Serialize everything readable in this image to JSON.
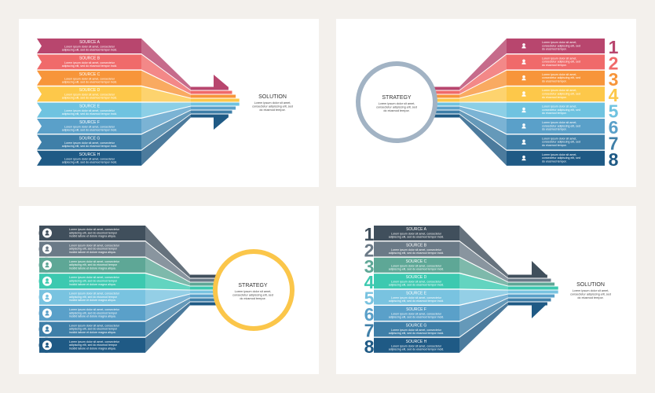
{
  "background": "#f3f0ec",
  "panels": [
    {
      "id": "sources-to-solution-colorful",
      "colors": [
        "#b8466e",
        "#f06a6a",
        "#f7953a",
        "#fdc84a",
        "#6fc3e0",
        "#5aa0c9",
        "#3f7fa8",
        "#1f5a85"
      ],
      "rows": [
        {
          "title": "SOURCE A"
        },
        {
          "title": "SOURCE B"
        },
        {
          "title": "SOURCE C"
        },
        {
          "title": "SOURCE D"
        },
        {
          "title": "SOURCE E"
        },
        {
          "title": "SOURCE F"
        },
        {
          "title": "SOURCE G"
        },
        {
          "title": "SOURCE H"
        }
      ],
      "row_desc": [
        "Lorem ipsum dolor sit amet, consectetur",
        "adipiscing elit, sed do eiusmod tempor incid."
      ],
      "target_title": "SOLUTION",
      "target_desc": [
        "Lorem ipsum dolor sit amet,",
        "consectetur adipiscing elit, sed",
        "do eiusmod tempor."
      ]
    },
    {
      "id": "strategy-to-numbered-colorful",
      "colors": [
        "#b8466e",
        "#f06a6a",
        "#f7953a",
        "#fdc84a",
        "#6fc3e0",
        "#5aa0c9",
        "#3f7fa8",
        "#1f5a85"
      ],
      "circle_color": "#a2b3c4",
      "numbers": [
        "1",
        "2",
        "3",
        "4",
        "5",
        "6",
        "7",
        "8"
      ],
      "icon": "person-icon",
      "row_desc": [
        "Lorem ipsum dolor sit amet,",
        "consectetur adipiscing elit, sed",
        "do eiusmod tempor."
      ],
      "target_title": "STRATEGY",
      "target_desc": [
        "Lorem ipsum dolor sit amet,",
        "consectetur adipiscing elit, sed",
        "do eiusmod tempor."
      ]
    },
    {
      "id": "icons-to-strategy-cool",
      "colors": [
        "#404f5c",
        "#6b7a87",
        "#5ea796",
        "#3cc9b0",
        "#79c3e0",
        "#5aa0c9",
        "#3f7fa8",
        "#1f5a85"
      ],
      "circle_color": "#fbc64a",
      "icon": "person-icon",
      "row_desc": [
        "Lorem ipsum dolor sit amet, consectetur",
        "adipiscing elit, sed do eiusmod tempor",
        "incidid labore et dolore magna aliqua."
      ],
      "target_title": "STRATEGY",
      "target_desc": [
        "Lorem ipsum dolor sit amet,",
        "consectetur adipiscing elit, sed",
        "do eiusmod tempor."
      ]
    },
    {
      "id": "numbered-sources-to-solution-cool",
      "colors": [
        "#404f5c",
        "#6b7a87",
        "#5ea796",
        "#3cc9b0",
        "#79c3e0",
        "#5aa0c9",
        "#3f7fa8",
        "#1f5a85"
      ],
      "numbers": [
        "1",
        "2",
        "3",
        "4",
        "5",
        "6",
        "7",
        "8"
      ],
      "rows": [
        {
          "title": "SOURCE A"
        },
        {
          "title": "SOURCE B"
        },
        {
          "title": "SOURCE C"
        },
        {
          "title": "SOURCE D"
        },
        {
          "title": "SOURCE E"
        },
        {
          "title": "SOURCE F"
        },
        {
          "title": "SOURCE G"
        },
        {
          "title": "SOURCE H"
        }
      ],
      "row_desc": [
        "Lorem ipsum dolor sit amet, consectetur",
        "adipiscing elit, sed do eiusmod tempor incid."
      ],
      "target_title": "SOLUTION",
      "target_desc": [
        "Lorem ipsum dolor sit amet,",
        "consectetur adipiscing elit, sed",
        "do eiusmod tempor."
      ]
    }
  ]
}
